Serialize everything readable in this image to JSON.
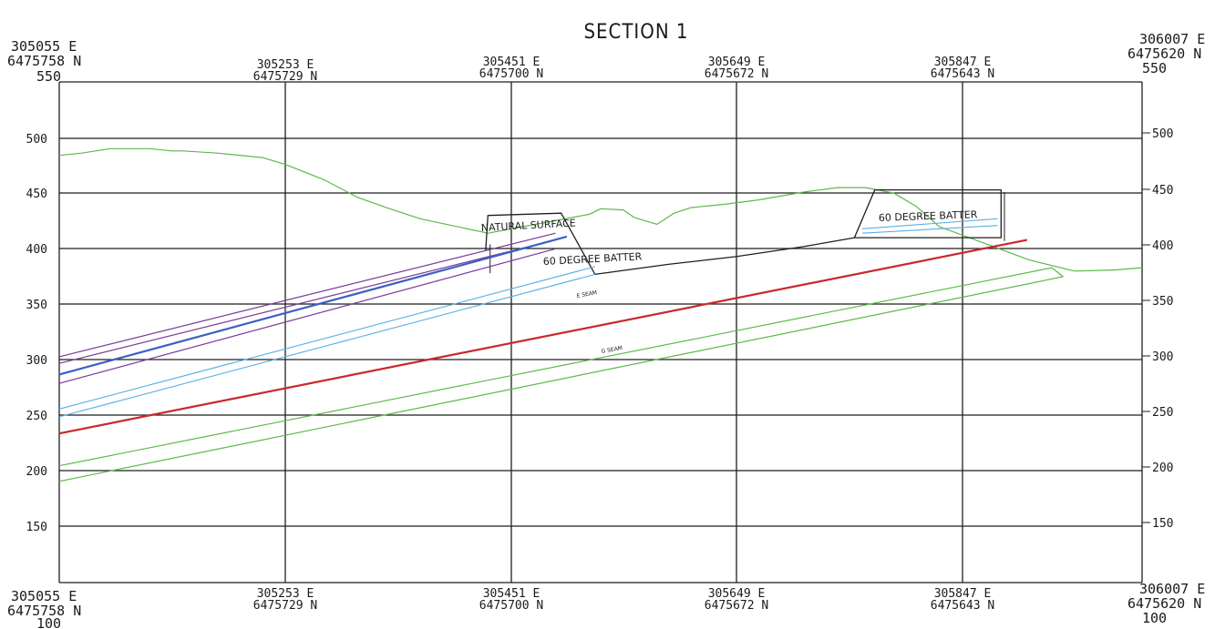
{
  "title": "SECTION 1",
  "corners": {
    "top_left": {
      "easting": "305055 E",
      "northing": "6475758 N",
      "elev": "550"
    },
    "top_right": {
      "easting": "306007 E",
      "northing": "6475620 N",
      "elev": "550"
    },
    "bottom_left": {
      "easting": "305055 E",
      "northing": "6475758 N",
      "elev": "100"
    },
    "bottom_right": {
      "easting": "306007 E",
      "northing": "6475620 N",
      "elev": "100"
    }
  },
  "stations": [
    {
      "easting": "305253 E",
      "northing": "6475729 N"
    },
    {
      "easting": "305451 E",
      "northing": "6475700 N"
    },
    {
      "easting": "305649 E",
      "northing": "6475672 N"
    },
    {
      "easting": "305847 E",
      "northing": "6475643 N"
    }
  ],
  "elevations_left": [
    "500",
    "450",
    "400",
    "350",
    "300",
    "250",
    "200",
    "150"
  ],
  "elevations_right": [
    "500",
    "450",
    "400",
    "350",
    "300",
    "250",
    "200",
    "150"
  ],
  "annotations": {
    "natural_surface": "NATURAL SURFACE",
    "batter_left": "60 DEGREE BATTER",
    "batter_right": "60 DEGREE BATTER",
    "e_seam": "E SEAM",
    "g_seam": "G SEAM"
  },
  "colors": {
    "grid": "#1f1f1f",
    "surface": "#5cb84a",
    "pit": "#1f1f1f",
    "purple_seam": "#7a3a9a",
    "blue_seam": "#3b5fc6",
    "light_blue_seam": "#5aaee6",
    "red_seam": "#c8282d",
    "green_seam": "#5cb84a"
  },
  "chart_data": {
    "type": "line",
    "x_unit": "chainage (m) from 305055 E",
    "y_unit": "elevation (m)",
    "xlim": [
      0,
      960
    ],
    "ylim": [
      100,
      550
    ],
    "grid": true,
    "series": [
      {
        "key": "natural_surface",
        "name": "NATURAL SURFACE",
        "color": "#5cb84a",
        "width": 1.2,
        "x": [
          0,
          20,
          45,
          80,
          100,
          110,
          140,
          180,
          200,
          235,
          265,
          290,
          320,
          380,
          470,
          480,
          500,
          510,
          530,
          545,
          560,
          590,
          620,
          660,
          690,
          695,
          715,
          740,
          760,
          780,
          820,
          860,
          900,
          935,
          960
        ],
        "y": [
          484,
          486,
          490,
          490,
          488,
          488,
          486,
          482,
          476,
          462,
          446,
          437,
          427,
          414,
          431,
          436,
          435,
          428,
          422,
          432,
          437,
          440,
          444,
          451,
          455,
          455,
          455,
          450,
          438,
          420,
          405,
          390,
          380,
          381,
          383
        ]
      },
      {
        "key": "pit_left",
        "color": "#1f1f1f",
        "width": 1.3,
        "x": [
          378,
          380,
          445,
          475
        ],
        "y": [
          398,
          430,
          432,
          377
        ]
      },
      {
        "key": "pit_floor",
        "color": "#1f1f1f",
        "width": 1.3,
        "x": [
          475,
          540,
          600,
          660,
          705
        ],
        "y": [
          377,
          386,
          393,
          402,
          410
        ]
      },
      {
        "key": "pit_right",
        "color": "#1f1f1f",
        "width": 1.3,
        "x": [
          705,
          723,
          835,
          835,
          705
        ],
        "y": [
          410,
          453,
          453,
          410,
          410
        ]
      },
      {
        "key": "batter_left_dim",
        "color": "#1f1f1f",
        "width": 1,
        "x": [
          382,
          382
        ],
        "y": [
          378,
          404
        ]
      },
      {
        "key": "batter_right_dim",
        "color": "#1f1f1f",
        "width": 1,
        "x": [
          838,
          838
        ],
        "y": [
          407,
          451
        ]
      },
      {
        "key": "purple_1",
        "color": "#7a3a9a",
        "width": 1.2,
        "x": [
          0,
          440
        ],
        "y": [
          303,
          414
        ]
      },
      {
        "key": "purple_2",
        "color": "#7a3a9a",
        "width": 1.2,
        "x": [
          0,
          440
        ],
        "y": [
          297,
          408
        ]
      },
      {
        "key": "blue_main",
        "color": "#3b5fc6",
        "width": 2.2,
        "x": [
          0,
          450
        ],
        "y": [
          287,
          411
        ]
      },
      {
        "key": "purple_3",
        "color": "#7a3a9a",
        "width": 1.2,
        "x": [
          0,
          440
        ],
        "y": [
          279,
          400
        ]
      },
      {
        "key": "light_blue_1",
        "color": "#5aaee6",
        "width": 1.1,
        "x": [
          0,
          475
        ],
        "y": [
          256,
          384
        ]
      },
      {
        "key": "light_blue_2",
        "color": "#5aaee6",
        "width": 1.1,
        "x": [
          0,
          475
        ],
        "y": [
          249,
          377
        ]
      },
      {
        "key": "light_blue_3",
        "color": "#5aaee6",
        "width": 1.1,
        "x": [
          712,
          832
        ],
        "y": [
          414,
          421
        ]
      },
      {
        "key": "light_blue_4",
        "color": "#5aaee6",
        "width": 1.1,
        "x": [
          712,
          832
        ],
        "y": [
          418,
          427
        ]
      },
      {
        "key": "e_seam_red",
        "name": "E SEAM",
        "color": "#c8282d",
        "width": 2.2,
        "x": [
          0,
          858
        ],
        "y": [
          234,
          408
        ]
      },
      {
        "key": "g_seam_upper",
        "name": "G SEAM",
        "color": "#5cb84a",
        "width": 1.2,
        "x": [
          0,
          880
        ],
        "y": [
          205,
          383
        ]
      },
      {
        "key": "g_seam_lower",
        "color": "#5cb84a",
        "width": 1.2,
        "x": [
          0,
          890
        ],
        "y": [
          191,
          375
        ]
      },
      {
        "key": "g_seam_end",
        "color": "#5cb84a",
        "width": 1.2,
        "x": [
          880,
          890
        ],
        "y": [
          383,
          375
        ]
      }
    ]
  }
}
